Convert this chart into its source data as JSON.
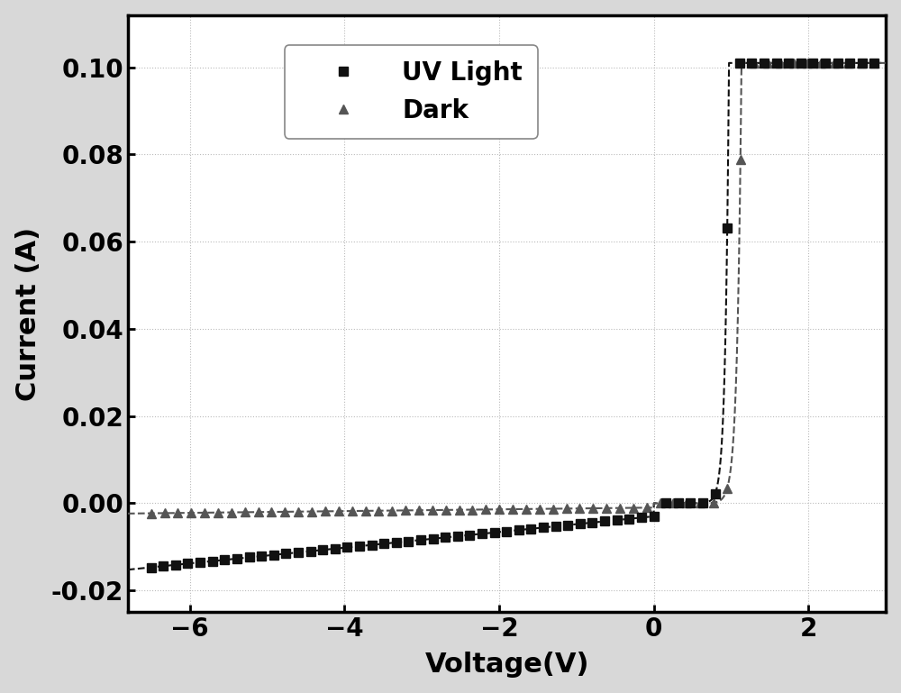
{
  "title": "",
  "xlabel": "Voltage(V)",
  "ylabel": "Current (A)",
  "xlim": [
    -6.8,
    3.0
  ],
  "ylim": [
    -0.025,
    0.112
  ],
  "xticks": [
    -6,
    -4,
    -2,
    0,
    2
  ],
  "yticks": [
    -0.02,
    0.0,
    0.02,
    0.04,
    0.06,
    0.08,
    0.1
  ],
  "background_color": "#d8d8d8",
  "plot_background_color": "#ffffff",
  "uv_color": "#111111",
  "dark_color": "#555555",
  "uv_label": "UV Light",
  "dark_label": "Dark",
  "marker_size_sq": 7,
  "marker_size_tri": 7,
  "linewidth": 1.5,
  "n_markers_uv": 60,
  "n_markers_dark": 55
}
